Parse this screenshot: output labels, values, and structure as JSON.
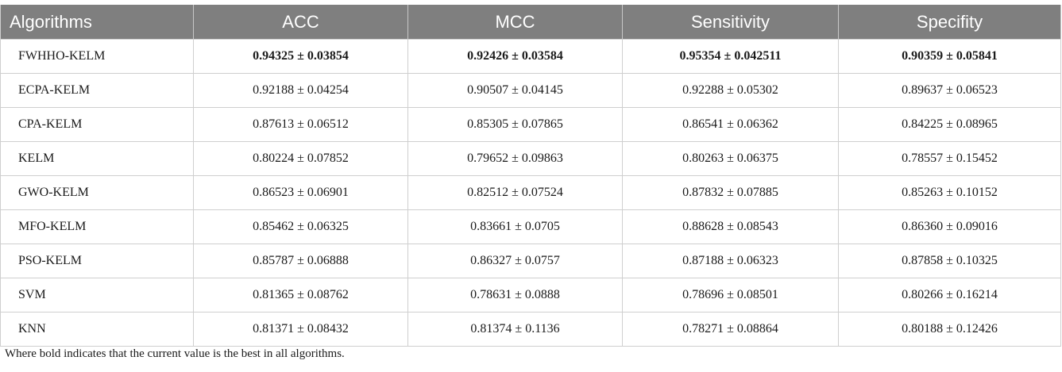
{
  "table": {
    "headers": [
      "Algorithms",
      "ACC",
      "MCC",
      "Sensitivity",
      "Specifity"
    ],
    "rows": [
      {
        "name": "FWHHO-KELM",
        "acc": "0.94325 ± 0.03854",
        "mcc": "0.92426 ± 0.03584",
        "sens": "0.95354 ± 0.042511",
        "spec": "0.90359 ± 0.05841",
        "best": true
      },
      {
        "name": "ECPA-KELM",
        "acc": "0.92188 ± 0.04254",
        "mcc": "0.90507 ± 0.04145",
        "sens": "0.92288 ± 0.05302",
        "spec": "0.89637 ± 0.06523",
        "best": false
      },
      {
        "name": "CPA-KELM",
        "acc": "0.87613 ± 0.06512",
        "mcc": "0.85305 ± 0.07865",
        "sens": "0.86541 ± 0.06362",
        "spec": "0.84225 ± 0.08965",
        "best": false
      },
      {
        "name": "KELM",
        "acc": "0.80224 ± 0.07852",
        "mcc": "0.79652 ± 0.09863",
        "sens": "0.80263 ± 0.06375",
        "spec": "0.78557 ± 0.15452",
        "best": false
      },
      {
        "name": "GWO-KELM",
        "acc": "0.86523 ± 0.06901",
        "mcc": "0.82512 ± 0.07524",
        "sens": "0.87832 ± 0.07885",
        "spec": "0.85263 ± 0.10152",
        "best": false
      },
      {
        "name": "MFO-KELM",
        "acc": "0.85462 ± 0.06325",
        "mcc": "0.83661 ± 0.0705",
        "sens": "0.88628 ± 0.08543",
        "spec": "0.86360 ± 0.09016",
        "best": false
      },
      {
        "name": "PSO-KELM",
        "acc": "0.85787 ± 0.06888",
        "mcc": "0.86327 ± 0.0757",
        "sens": "0.87188 ± 0.06323",
        "spec": "0.87858 ± 0.10325",
        "best": false
      },
      {
        "name": "SVM",
        "acc": "0.81365 ± 0.08762",
        "mcc": "0.78631 ± 0.0888",
        "sens": "0.78696 ± 0.08501",
        "spec": "0.80266 ± 0.16214",
        "best": false
      },
      {
        "name": "KNN",
        "acc": "0.81371 ± 0.08432",
        "mcc": "0.81374 ± 0.1136",
        "sens": "0.78271 ± 0.08864",
        "spec": "0.80188 ± 0.12426",
        "best": false
      }
    ]
  },
  "footnote": "Where bold indicates that the current value is the best in all algorithms.",
  "colors": {
    "header_bg": "#7f7f7f",
    "header_text": "#ffffff",
    "grid": "#cfcfcf"
  }
}
